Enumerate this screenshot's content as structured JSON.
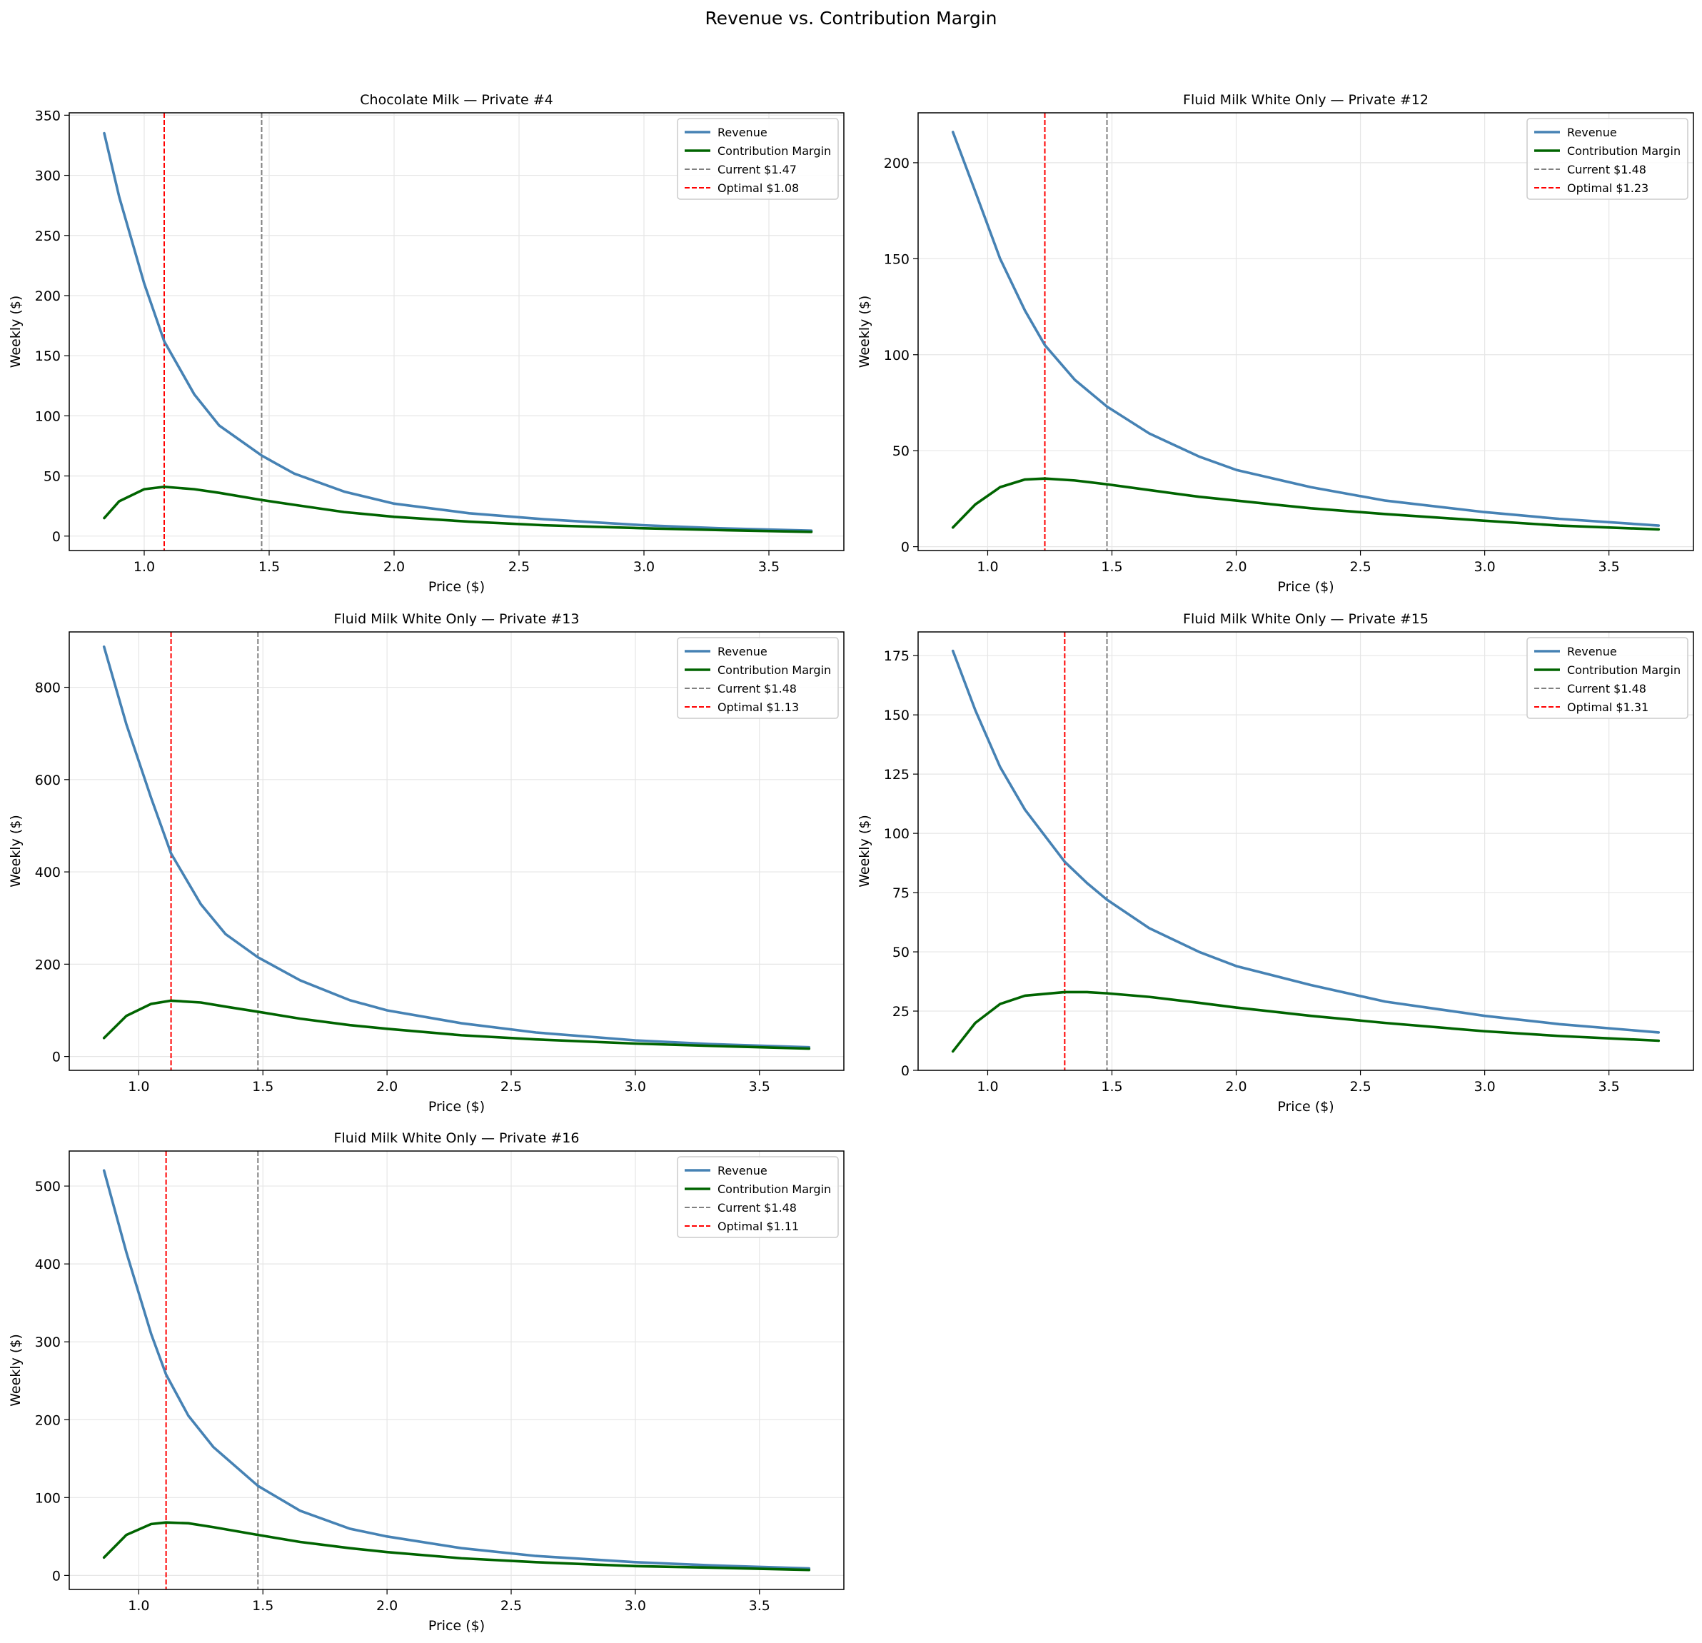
{
  "figure": {
    "title": "Revenue vs. Contribution Margin"
  },
  "style": {
    "revenue_color": "#4682b4",
    "margin_color": "#006400",
    "current_color": "#808080",
    "optimal_color": "#ff0000",
    "grid_color": "#e6e6e6"
  },
  "chart_data": [
    {
      "type": "line",
      "title": "Chocolate Milk — Private  #4",
      "xlabel": "Price ($)",
      "ylabel": "Weekly ($)",
      "xlim": [
        0.7,
        3.8
      ],
      "ylim": [
        -12,
        352
      ],
      "xticks": [
        1.0,
        1.5,
        2.0,
        2.5,
        3.0,
        3.5
      ],
      "yticks": [
        0,
        50,
        100,
        150,
        200,
        250,
        300,
        350
      ],
      "grid": true,
      "legend_position": "upper right",
      "price_range": [
        0.84,
        3.67
      ],
      "current_price": 1.47,
      "optimal_price": 1.08,
      "series": [
        {
          "name": "Revenue",
          "x": [
            0.84,
            0.9,
            1.0,
            1.08,
            1.2,
            1.3,
            1.47,
            1.6,
            1.8,
            2.0,
            2.3,
            2.6,
            3.0,
            3.3,
            3.67
          ],
          "y": [
            335,
            282,
            210,
            162,
            118,
            92,
            67,
            52,
            37,
            27,
            19,
            14,
            9,
            6.5,
            4.5
          ]
        },
        {
          "name": "Contribution Margin",
          "x": [
            0.84,
            0.9,
            1.0,
            1.08,
            1.2,
            1.3,
            1.47,
            1.6,
            1.8,
            2.0,
            2.3,
            2.6,
            3.0,
            3.3,
            3.67
          ],
          "y": [
            15,
            29,
            39,
            41,
            39,
            36,
            30,
            26,
            20,
            16,
            12,
            9,
            6.5,
            5,
            3.5
          ]
        }
      ],
      "legend": [
        "Revenue",
        "Contribution Margin",
        "Current $1.47",
        "Optimal $1.08"
      ]
    },
    {
      "type": "line",
      "title": "Fluid Milk White Only — Private  #12",
      "xlabel": "Price ($)",
      "ylabel": "Weekly ($)",
      "xlim": [
        0.72,
        3.84
      ],
      "ylim": [
        -2,
        226
      ],
      "xticks": [
        1.0,
        1.5,
        2.0,
        2.5,
        3.0,
        3.5
      ],
      "yticks": [
        0,
        50,
        100,
        150,
        200
      ],
      "grid": true,
      "legend_position": "upper right",
      "price_range": [
        0.86,
        3.7
      ],
      "current_price": 1.48,
      "optimal_price": 1.23,
      "series": [
        {
          "name": "Revenue",
          "x": [
            0.86,
            0.95,
            1.05,
            1.15,
            1.23,
            1.35,
            1.48,
            1.65,
            1.85,
            2.0,
            2.3,
            2.6,
            3.0,
            3.3,
            3.7
          ],
          "y": [
            216,
            185,
            150,
            123,
            105,
            87,
            73,
            59,
            47,
            40,
            31,
            24,
            18,
            14.5,
            11
          ]
        },
        {
          "name": "Contribution Margin",
          "x": [
            0.86,
            0.95,
            1.05,
            1.15,
            1.23,
            1.35,
            1.48,
            1.65,
            1.85,
            2.0,
            2.3,
            2.6,
            3.0,
            3.3,
            3.7
          ],
          "y": [
            10,
            22,
            31,
            35,
            35.5,
            34.5,
            32.5,
            29.5,
            26,
            24,
            20,
            17,
            13.5,
            11,
            9
          ]
        }
      ],
      "legend": [
        "Revenue",
        "Contribution Margin",
        "Current $1.48",
        "Optimal $1.23"
      ]
    },
    {
      "type": "line",
      "title": "Fluid Milk White Only — Private  #13",
      "xlabel": "Price ($)",
      "ylabel": "Weekly ($)",
      "xlim": [
        0.72,
        3.84
      ],
      "ylim": [
        -30,
        920
      ],
      "xticks": [
        1.0,
        1.5,
        2.0,
        2.5,
        3.0,
        3.5
      ],
      "yticks": [
        0,
        200,
        400,
        600,
        800
      ],
      "grid": true,
      "legend_position": "upper right",
      "price_range": [
        0.86,
        3.7
      ],
      "current_price": 1.48,
      "optimal_price": 1.13,
      "series": [
        {
          "name": "Revenue",
          "x": [
            0.86,
            0.95,
            1.05,
            1.13,
            1.25,
            1.35,
            1.48,
            1.65,
            1.85,
            2.0,
            2.3,
            2.6,
            3.0,
            3.3,
            3.7
          ],
          "y": [
            888,
            720,
            560,
            440,
            330,
            265,
            215,
            165,
            122,
            100,
            72,
            52,
            35,
            27,
            20
          ]
        },
        {
          "name": "Contribution Margin",
          "x": [
            0.86,
            0.95,
            1.05,
            1.13,
            1.25,
            1.35,
            1.48,
            1.65,
            1.85,
            2.0,
            2.3,
            2.6,
            3.0,
            3.3,
            3.7
          ],
          "y": [
            40,
            88,
            114,
            121,
            117,
            108,
            97,
            82,
            68,
            60,
            46,
            37,
            28,
            23,
            17
          ]
        }
      ],
      "legend": [
        "Revenue",
        "Contribution Margin",
        "Current $1.48",
        "Optimal $1.13"
      ]
    },
    {
      "type": "line",
      "title": "Fluid Milk White Only — Private  #15",
      "xlabel": "Price ($)",
      "ylabel": "Weekly ($)",
      "xlim": [
        0.72,
        3.84
      ],
      "ylim": [
        0,
        185
      ],
      "xticks": [
        1.0,
        1.5,
        2.0,
        2.5,
        3.0,
        3.5
      ],
      "yticks": [
        0,
        25,
        50,
        75,
        100,
        125,
        150,
        175
      ],
      "grid": true,
      "legend_position": "upper right",
      "price_range": [
        0.86,
        3.7
      ],
      "current_price": 1.48,
      "optimal_price": 1.31,
      "series": [
        {
          "name": "Revenue",
          "x": [
            0.86,
            0.95,
            1.05,
            1.15,
            1.31,
            1.4,
            1.48,
            1.65,
            1.85,
            2.0,
            2.3,
            2.6,
            3.0,
            3.3,
            3.7
          ],
          "y": [
            177,
            152,
            128,
            110,
            88,
            79,
            72,
            60,
            50,
            44,
            36,
            29,
            23,
            19.5,
            16
          ]
        },
        {
          "name": "Contribution Margin",
          "x": [
            0.86,
            0.95,
            1.05,
            1.15,
            1.31,
            1.4,
            1.48,
            1.65,
            1.85,
            2.0,
            2.3,
            2.6,
            3.0,
            3.3,
            3.7
          ],
          "y": [
            8,
            20,
            28,
            31.5,
            33,
            33,
            32.5,
            31,
            28.5,
            26.5,
            23,
            20,
            16.5,
            14.5,
            12.5
          ]
        }
      ],
      "legend": [
        "Revenue",
        "Contribution Margin",
        "Current $1.48",
        "Optimal $1.31"
      ]
    },
    {
      "type": "line",
      "title": "Fluid Milk White Only — Private  #16",
      "xlabel": "Price ($)",
      "ylabel": "Weekly ($)",
      "xlim": [
        0.72,
        3.84
      ],
      "ylim": [
        -18,
        545
      ],
      "xticks": [
        1.0,
        1.5,
        2.0,
        2.5,
        3.0,
        3.5
      ],
      "yticks": [
        0,
        100,
        200,
        300,
        400,
        500
      ],
      "grid": true,
      "legend_position": "upper right",
      "price_range": [
        0.86,
        3.7
      ],
      "current_price": 1.48,
      "optimal_price": 1.11,
      "series": [
        {
          "name": "Revenue",
          "x": [
            0.86,
            0.95,
            1.05,
            1.11,
            1.2,
            1.3,
            1.48,
            1.65,
            1.85,
            2.0,
            2.3,
            2.6,
            3.0,
            3.3,
            3.7
          ],
          "y": [
            520,
            415,
            310,
            258,
            205,
            165,
            115,
            83,
            60,
            50,
            35,
            25,
            17,
            13,
            9
          ]
        },
        {
          "name": "Contribution Margin",
          "x": [
            0.86,
            0.95,
            1.05,
            1.11,
            1.2,
            1.3,
            1.48,
            1.65,
            1.85,
            2.0,
            2.3,
            2.6,
            3.0,
            3.3,
            3.7
          ],
          "y": [
            23,
            52,
            66,
            68,
            67,
            62,
            52,
            43,
            35,
            30,
            22,
            17,
            12,
            10,
            7
          ]
        }
      ],
      "legend": [
        "Revenue",
        "Contribution Margin",
        "Current $1.48",
        "Optimal $1.11"
      ]
    }
  ]
}
